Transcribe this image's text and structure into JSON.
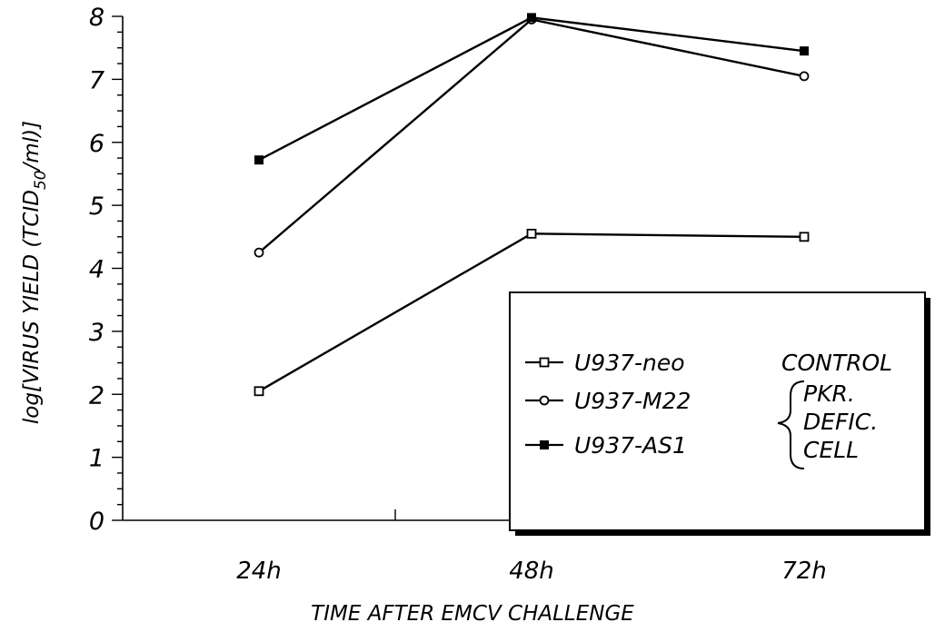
{
  "chart_data": {
    "type": "line",
    "xlabel": "TIME AFTER EMCV CHALLENGE",
    "ylabel": "log[VIRUS YIELD (TCID",
    "ylabel_sub": "50",
    "ylabel_end": "/ml)]",
    "categories": [
      "24h",
      "48h",
      "72h"
    ],
    "yticks": [
      "0",
      "1",
      "2",
      "3",
      "4",
      "5",
      "6",
      "7",
      "8"
    ],
    "ylim": [
      0,
      8
    ],
    "grid": false,
    "legend_position": "bottom-right",
    "series": [
      {
        "name": "U937-neo",
        "marker": "open-square",
        "values": [
          2.05,
          4.55,
          4.5
        ]
      },
      {
        "name": "U937-M22",
        "marker": "open-circle",
        "values": [
          4.25,
          7.95,
          7.05
        ]
      },
      {
        "name": "U937-AS1",
        "marker": "filled-square",
        "values": [
          5.72,
          7.98,
          7.45
        ]
      }
    ],
    "legend_groups": {
      "control": "CONTROL",
      "deficient": [
        "PKR.",
        "DEFIC.",
        "CELL"
      ]
    }
  }
}
